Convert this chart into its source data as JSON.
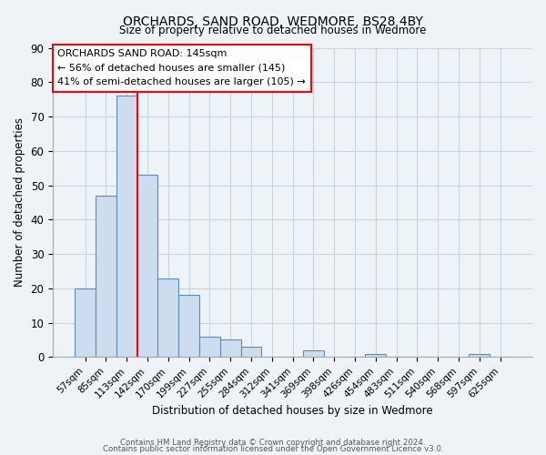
{
  "title": "ORCHARDS, SAND ROAD, WEDMORE, BS28 4BY",
  "subtitle": "Size of property relative to detached houses in Wedmore",
  "xlabel": "Distribution of detached houses by size in Wedmore",
  "ylabel": "Number of detached properties",
  "bar_color": "#ccddef",
  "bar_edge_color": "#5b8db8",
  "categories": [
    "57sqm",
    "85sqm",
    "113sqm",
    "142sqm",
    "170sqm",
    "199sqm",
    "227sqm",
    "255sqm",
    "284sqm",
    "312sqm",
    "341sqm",
    "369sqm",
    "398sqm",
    "426sqm",
    "454sqm",
    "483sqm",
    "511sqm",
    "540sqm",
    "568sqm",
    "597sqm",
    "625sqm"
  ],
  "values": [
    20,
    47,
    76,
    53,
    23,
    18,
    6,
    5,
    3,
    0,
    0,
    2,
    0,
    0,
    1,
    0,
    0,
    0,
    0,
    1,
    0
  ],
  "ylim": [
    0,
    90
  ],
  "yticks": [
    0,
    10,
    20,
    30,
    40,
    50,
    60,
    70,
    80,
    90
  ],
  "annotation_box_text": "ORCHARDS SAND ROAD: 145sqm\n← 56% of detached houses are smaller (145)\n41% of semi-detached houses are larger (105) →",
  "red_line_x": 3.5,
  "footer_line1": "Contains HM Land Registry data © Crown copyright and database right 2024.",
  "footer_line2": "Contains public sector information licensed under the Open Government Licence v3.0.",
  "background_color": "#eef3f8",
  "plot_bg_color": "#eef3f8",
  "grid_color": "#c8d4e0"
}
